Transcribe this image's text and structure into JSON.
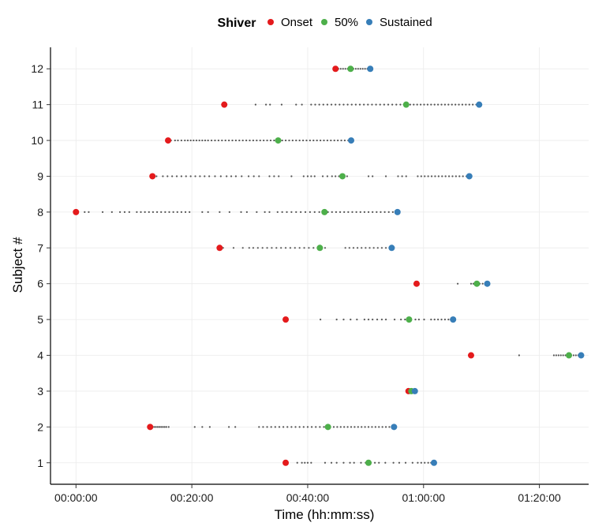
{
  "chart_data": {
    "type": "scatter",
    "xlabel": "Time (hh:mm:ss)",
    "ylabel": "Subject #",
    "x_unit": "minutes",
    "xlim": [
      -4.4,
      88.5
    ],
    "ylim": [
      0.4,
      12.6
    ],
    "x_ticks": [
      {
        "value": 0,
        "label": "00:00:00"
      },
      {
        "value": 20,
        "label": "00:20:00"
      },
      {
        "value": 40,
        "label": "00:40:00"
      },
      {
        "value": 60,
        "label": "01:00:00"
      },
      {
        "value": 80,
        "label": "01:20:00"
      }
    ],
    "y_ticks": [
      1,
      2,
      3,
      4,
      5,
      6,
      7,
      8,
      9,
      10,
      11,
      12
    ],
    "grid": true,
    "legend": {
      "title": "Shiver",
      "position": "top",
      "entries": [
        {
          "label": "Onset",
          "color": "#e41a1c"
        },
        {
          "label": "50%",
          "color": "#4daf4a"
        },
        {
          "label": "Sustained",
          "color": "#377eb8"
        }
      ]
    },
    "series": [
      {
        "name": "Onset",
        "color": "#e41a1c",
        "points": [
          {
            "subject": 1,
            "x": 36.2
          },
          {
            "subject": 2,
            "x": 12.8
          },
          {
            "subject": 3,
            "x": 57.4
          },
          {
            "subject": 4,
            "x": 68.2
          },
          {
            "subject": 5,
            "x": 36.2
          },
          {
            "subject": 6,
            "x": 58.8
          },
          {
            "subject": 7,
            "x": 24.8
          },
          {
            "subject": 8,
            "x": 0.0
          },
          {
            "subject": 9,
            "x": 13.2
          },
          {
            "subject": 10,
            "x": 15.9
          },
          {
            "subject": 11,
            "x": 25.6
          },
          {
            "subject": 12,
            "x": 44.8
          }
        ]
      },
      {
        "name": "50%",
        "color": "#4daf4a",
        "points": [
          {
            "subject": 1,
            "x": 50.5
          },
          {
            "subject": 2,
            "x": 43.5
          },
          {
            "subject": 3,
            "x": 57.9
          },
          {
            "subject": 4,
            "x": 85.1
          },
          {
            "subject": 5,
            "x": 57.5
          },
          {
            "subject": 6,
            "x": 69.2
          },
          {
            "subject": 7,
            "x": 42.1
          },
          {
            "subject": 8,
            "x": 42.9
          },
          {
            "subject": 9,
            "x": 46.0
          },
          {
            "subject": 10,
            "x": 34.9
          },
          {
            "subject": 11,
            "x": 57.0
          },
          {
            "subject": 12,
            "x": 47.4
          }
        ]
      },
      {
        "name": "Sustained",
        "color": "#377eb8",
        "points": [
          {
            "subject": 1,
            "x": 61.8
          },
          {
            "subject": 2,
            "x": 54.9
          },
          {
            "subject": 3,
            "x": 58.5
          },
          {
            "subject": 4,
            "x": 87.2
          },
          {
            "subject": 5,
            "x": 65.1
          },
          {
            "subject": 6,
            "x": 71.0
          },
          {
            "subject": 7,
            "x": 54.5
          },
          {
            "subject": 8,
            "x": 55.5
          },
          {
            "subject": 9,
            "x": 67.9
          },
          {
            "subject": 10,
            "x": 47.5
          },
          {
            "subject": 11,
            "x": 69.6
          },
          {
            "subject": 12,
            "x": 50.8
          }
        ]
      }
    ],
    "events": {
      "marker": "small-dot",
      "color": "#555555",
      "rows": [
        {
          "subject": 1,
          "x": [
            38.2,
            39.0,
            39.5,
            40.0,
            40.6,
            43.0,
            44.1,
            45.0,
            46.2,
            47.3,
            48.0,
            49.2,
            50.0,
            50.9,
            51.6,
            52.3,
            53.4,
            54.8,
            55.8,
            56.9,
            58.1,
            59.0,
            59.6,
            60.2,
            60.8,
            61.3
          ]
        },
        {
          "subject": 2,
          "x": [
            13.2,
            13.5,
            13.8,
            14.1,
            14.4,
            14.7,
            15.0,
            15.3,
            15.6,
            16.0,
            20.5,
            21.8,
            23.1,
            26.4,
            27.5,
            31.6,
            32.3,
            33.0,
            33.7,
            34.4,
            35.1,
            35.8,
            36.5,
            37.2,
            37.9,
            38.6,
            39.3,
            40.0,
            40.7,
            41.4,
            42.1,
            42.8,
            43.9,
            44.5,
            45.1,
            45.7,
            46.3,
            46.9,
            47.5,
            48.1,
            48.7,
            49.3,
            49.9,
            50.5,
            51.1,
            51.7,
            52.3,
            52.9,
            53.5,
            54.1,
            54.6
          ]
        },
        {
          "subject": 3,
          "x": [
            57.6,
            57.8,
            58.0,
            58.2,
            58.3
          ]
        },
        {
          "subject": 4,
          "x": [
            76.5,
            82.5,
            82.9,
            83.3,
            83.7,
            84.1,
            84.5,
            85.5,
            85.9,
            86.3,
            86.7
          ]
        },
        {
          "subject": 5,
          "x": [
            42.2,
            45.0,
            46.2,
            47.4,
            48.5,
            49.8,
            50.5,
            51.2,
            52.0,
            52.8,
            53.5,
            55.0,
            56.1,
            56.8,
            58.6,
            59.2,
            60.1,
            61.3,
            61.9,
            62.5,
            63.1,
            63.7,
            64.3,
            64.7
          ]
        },
        {
          "subject": 6,
          "x": [
            65.9,
            68.2,
            68.6,
            69.7,
            70.2,
            70.6
          ]
        },
        {
          "subject": 7,
          "x": [
            25.4,
            27.2,
            28.8,
            29.9,
            30.6,
            31.4,
            32.2,
            33.0,
            33.8,
            34.6,
            35.4,
            36.2,
            37.0,
            37.8,
            38.6,
            39.4,
            40.2,
            41.0,
            41.7,
            43.0,
            46.5,
            47.2,
            47.9,
            48.6,
            49.3,
            50.0,
            50.7,
            51.4,
            52.1,
            52.8,
            53.5,
            54.1
          ]
        },
        {
          "subject": 8,
          "x": [
            1.5,
            2.2,
            4.6,
            6.2,
            7.6,
            8.4,
            9.2,
            10.5,
            11.2,
            11.9,
            12.6,
            13.3,
            14.0,
            14.7,
            15.4,
            16.1,
            16.8,
            17.5,
            18.2,
            18.9,
            19.6,
            21.8,
            22.8,
            24.8,
            26.5,
            28.5,
            29.5,
            31.2,
            32.6,
            33.4,
            34.8,
            35.6,
            36.4,
            37.2,
            38.0,
            38.8,
            39.6,
            40.4,
            41.2,
            42.0,
            43.5,
            44.2,
            44.9,
            45.6,
            46.3,
            47.0,
            47.7,
            48.4,
            49.1,
            49.8,
            50.5,
            51.2,
            51.9,
            52.6,
            53.3,
            54.0,
            54.7,
            55.2
          ]
        },
        {
          "subject": 9,
          "x": [
            13.9,
            15.0,
            15.8,
            16.6,
            17.4,
            18.2,
            19.0,
            19.8,
            20.6,
            21.4,
            22.2,
            23.0,
            24.0,
            25.0,
            26.0,
            26.8,
            27.6,
            28.6,
            29.8,
            30.7,
            31.6,
            33.4,
            34.2,
            35.0,
            37.2,
            39.3,
            40.0,
            40.6,
            41.2,
            42.6,
            43.4,
            44.2,
            44.8,
            45.4,
            46.8,
            50.5,
            51.2,
            53.5,
            55.6,
            56.3,
            57.0,
            59.0,
            59.6,
            60.2,
            60.8,
            61.4,
            62.0,
            62.6,
            63.2,
            63.8,
            64.4,
            65.0,
            65.6,
            66.2,
            66.8,
            67.4
          ]
        },
        {
          "subject": 10,
          "x": [
            16.4,
            17.1,
            17.6,
            18.2,
            18.8,
            19.3,
            19.8,
            20.3,
            20.8,
            21.3,
            21.8,
            22.3,
            22.8,
            23.4,
            24.0,
            24.6,
            25.2,
            25.8,
            26.4,
            27.0,
            27.6,
            28.2,
            28.8,
            29.4,
            30.0,
            30.6,
            31.2,
            31.8,
            32.4,
            33.0,
            33.6,
            34.2,
            35.6,
            36.2,
            36.8,
            37.4,
            38.0,
            38.6,
            39.2,
            39.8,
            40.4,
            41.0,
            41.6,
            42.2,
            42.8,
            43.4,
            44.0,
            44.6,
            45.2,
            45.8,
            46.4,
            47.0
          ]
        },
        {
          "subject": 11,
          "x": [
            31.0,
            32.8,
            33.5,
            35.5,
            38.0,
            39.0,
            40.6,
            41.3,
            42.0,
            42.7,
            43.4,
            44.1,
            44.8,
            45.5,
            46.2,
            46.9,
            47.6,
            48.3,
            49.0,
            49.7,
            50.4,
            51.1,
            51.8,
            52.5,
            53.2,
            53.9,
            54.6,
            55.3,
            56.0,
            56.6,
            57.7,
            58.3,
            58.9,
            59.5,
            60.1,
            60.7,
            61.3,
            61.9,
            62.5,
            63.1,
            63.7,
            64.3,
            64.9,
            65.5,
            66.1,
            66.7,
            67.3,
            67.9,
            68.5,
            69.1
          ]
        },
        {
          "subject": 12,
          "x": [
            45.3,
            45.7,
            46.1,
            46.5,
            46.9,
            47.9,
            48.3,
            48.7,
            49.1,
            49.5,
            49.9,
            50.3
          ]
        }
      ]
    }
  }
}
